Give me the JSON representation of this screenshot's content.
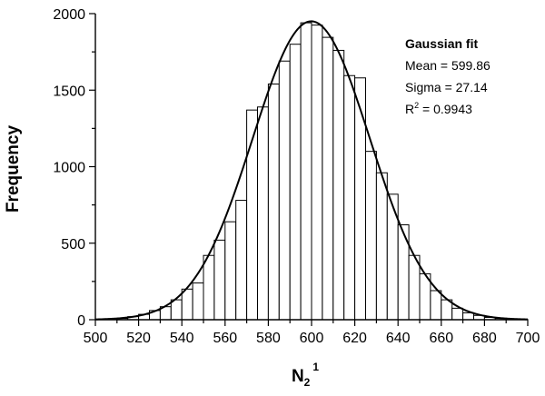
{
  "chart_data": {
    "type": "bar",
    "xlabel": {
      "main": "N",
      "sub": "2",
      "sup": "1"
    },
    "ylabel": "Frequency",
    "xlim": [
      500,
      700
    ],
    "ylim": [
      0,
      2000
    ],
    "x_ticks": [
      500,
      520,
      540,
      560,
      580,
      600,
      620,
      640,
      660,
      680,
      700
    ],
    "y_ticks": [
      0,
      500,
      1000,
      1500,
      2000
    ],
    "bin_width": 5,
    "bins": [
      {
        "x": 500,
        "y": 2
      },
      {
        "x": 505,
        "y": 3
      },
      {
        "x": 510,
        "y": 8
      },
      {
        "x": 515,
        "y": 20
      },
      {
        "x": 520,
        "y": 35
      },
      {
        "x": 525,
        "y": 60
      },
      {
        "x": 530,
        "y": 85
      },
      {
        "x": 535,
        "y": 130
      },
      {
        "x": 540,
        "y": 200
      },
      {
        "x": 545,
        "y": 240
      },
      {
        "x": 550,
        "y": 420
      },
      {
        "x": 555,
        "y": 520
      },
      {
        "x": 560,
        "y": 640
      },
      {
        "x": 565,
        "y": 780
      },
      {
        "x": 570,
        "y": 1370
      },
      {
        "x": 575,
        "y": 1390
      },
      {
        "x": 580,
        "y": 1540
      },
      {
        "x": 585,
        "y": 1690
      },
      {
        "x": 590,
        "y": 1800
      },
      {
        "x": 595,
        "y": 1940
      },
      {
        "x": 600,
        "y": 1925
      },
      {
        "x": 605,
        "y": 1845
      },
      {
        "x": 610,
        "y": 1760
      },
      {
        "x": 615,
        "y": 1595
      },
      {
        "x": 620,
        "y": 1580
      },
      {
        "x": 625,
        "y": 1100
      },
      {
        "x": 630,
        "y": 960
      },
      {
        "x": 635,
        "y": 820
      },
      {
        "x": 640,
        "y": 620
      },
      {
        "x": 645,
        "y": 420
      },
      {
        "x": 650,
        "y": 300
      },
      {
        "x": 655,
        "y": 190
      },
      {
        "x": 660,
        "y": 130
      },
      {
        "x": 665,
        "y": 75
      },
      {
        "x": 670,
        "y": 45
      },
      {
        "x": 675,
        "y": 28
      },
      {
        "x": 680,
        "y": 15
      },
      {
        "x": 685,
        "y": 8
      },
      {
        "x": 690,
        "y": 4
      },
      {
        "x": 695,
        "y": 2
      }
    ],
    "fit": {
      "type": "gaussian",
      "mean": 599.86,
      "sigma": 27.14,
      "peak": 1950
    },
    "annotations": {
      "title": "Gaussian fit",
      "mean_text": "Mean = 599.86",
      "sigma_text": "Sigma = 27.14",
      "r2_prefix": "R",
      "r2_sup": "2",
      "r2_suffix": " = 0.9943"
    },
    "grid": false,
    "legend": "none"
  }
}
